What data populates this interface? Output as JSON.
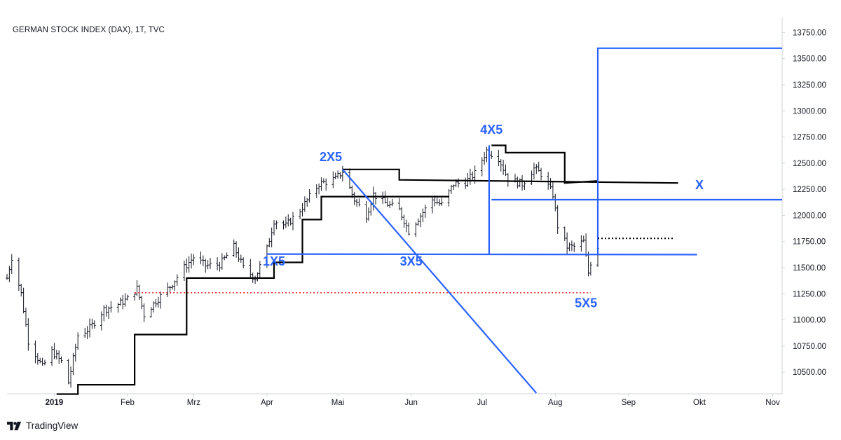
{
  "title": "GERMAN STOCK INDEX (DAX), 1T, TVC",
  "brand": "TradingView",
  "colors": {
    "blue": "#2962ff",
    "black": "#000000",
    "red": "#e53935",
    "bars": "#131722",
    "axis_text": "#131722",
    "border": "#cfd3dc"
  },
  "icons": [
    "tradingview-logo-icon"
  ],
  "chart_data": {
    "type": "ohlc",
    "y_ticks": [
      "13750.00",
      "13500.00",
      "13250.00",
      "13000.00",
      "12750.00",
      "12500.00",
      "12250.00",
      "12000.00",
      "11750.00",
      "11500.00",
      "11250.00",
      "11000.00",
      "10750.00",
      "10500.00"
    ],
    "ylim": [
      10300,
      13900
    ],
    "x_ticks": [
      {
        "label": "2019",
        "date": "2019-01-01"
      },
      {
        "label": "Feb",
        "date": "2019-02-01"
      },
      {
        "label": "Mrz",
        "date": "2019-03-01"
      },
      {
        "label": "Apr",
        "date": "2019-04-01"
      },
      {
        "label": "Mai",
        "date": "2019-05-01"
      },
      {
        "label": "Jun",
        "date": "2019-06-01"
      },
      {
        "label": "Jul",
        "date": "2019-07-01"
      },
      {
        "label": "Aug",
        "date": "2019-08-01"
      },
      {
        "label": "Sep",
        "date": "2019-09-01"
      },
      {
        "label": "Okt",
        "date": "2019-10-01"
      },
      {
        "label": "Nov",
        "date": "2019-11-01"
      }
    ],
    "xlim": [
      "2018-12-12",
      "2019-11-05"
    ],
    "price_path": [
      [
        "2018-12-12",
        11400
      ],
      [
        "2018-12-14",
        11600
      ],
      [
        "2018-12-18",
        11250
      ],
      [
        "2018-12-21",
        10800
      ],
      [
        "2018-12-27",
        10550
      ],
      [
        "2018-12-31",
        10700
      ],
      [
        "2019-01-04",
        10600
      ],
      [
        "2019-01-07",
        10400
      ],
      [
        "2019-01-11",
        10850
      ],
      [
        "2019-01-16",
        10920
      ],
      [
        "2019-01-22",
        11100
      ],
      [
        "2019-01-28",
        11150
      ],
      [
        "2019-02-01",
        11200
      ],
      [
        "2019-02-05",
        11300
      ],
      [
        "2019-02-08",
        11050
      ],
      [
        "2019-02-13",
        11180
      ],
      [
        "2019-02-19",
        11320
      ],
      [
        "2019-02-25",
        11500
      ],
      [
        "2019-03-01",
        11600
      ],
      [
        "2019-03-06",
        11520
      ],
      [
        "2019-03-12",
        11530
      ],
      [
        "2019-03-18",
        11700
      ],
      [
        "2019-03-22",
        11500
      ],
      [
        "2019-03-27",
        11400
      ],
      [
        "2019-04-01",
        11680
      ],
      [
        "2019-04-04",
        11950
      ],
      [
        "2019-04-09",
        11900
      ],
      [
        "2019-04-15",
        12050
      ],
      [
        "2019-04-23",
        12300
      ],
      [
        "2019-04-30",
        12350
      ],
      [
        "2019-05-03",
        12420
      ],
      [
        "2019-05-08",
        12150
      ],
      [
        "2019-05-13",
        12000
      ],
      [
        "2019-05-16",
        12200
      ],
      [
        "2019-05-21",
        12120
      ],
      [
        "2019-05-27",
        12050
      ],
      [
        "2019-05-31",
        11850
      ],
      [
        "2019-06-05",
        12000
      ],
      [
        "2019-06-10",
        12150
      ],
      [
        "2019-06-14",
        12100
      ],
      [
        "2019-06-19",
        12300
      ],
      [
        "2019-06-24",
        12320
      ],
      [
        "2019-06-28",
        12400
      ],
      [
        "2019-07-03",
        12620
      ],
      [
        "2019-07-08",
        12550
      ],
      [
        "2019-07-12",
        12350
      ],
      [
        "2019-07-18",
        12300
      ],
      [
        "2019-07-23",
        12450
      ],
      [
        "2019-07-26",
        12400
      ],
      [
        "2019-07-31",
        12200
      ],
      [
        "2019-08-02",
        11900
      ],
      [
        "2019-08-06",
        11700
      ],
      [
        "2019-08-09",
        11700
      ],
      [
        "2019-08-13",
        11750
      ],
      [
        "2019-08-15",
        11450
      ],
      [
        "2019-08-16",
        11550
      ],
      [
        "2019-08-19",
        11700
      ]
    ],
    "annotations": {
      "labels": [
        {
          "text": "1X5",
          "date": "2019-04-04",
          "price": 11520
        },
        {
          "text": "2X5",
          "date": "2019-04-28",
          "price": 12520
        },
        {
          "text": "3X5",
          "date": "2019-06-01",
          "price": 11520
        },
        {
          "text": "4X5",
          "date": "2019-07-05",
          "price": 12780
        },
        {
          "text": "5X5",
          "date": "2019-08-14",
          "price": 11120
        },
        {
          "text": "X",
          "date": "2019-10-01",
          "price": 12250
        }
      ],
      "black_steps": [
        [
          [
            "2019-01-02",
            10290
          ],
          [
            "2019-01-11",
            10290
          ],
          [
            "2019-01-11",
            10380
          ],
          [
            "2019-02-04",
            10380
          ],
          [
            "2019-02-04",
            10860
          ],
          [
            "2019-02-26",
            10860
          ],
          [
            "2019-02-26",
            11400
          ],
          [
            "2019-04-04",
            11400
          ],
          [
            "2019-04-04",
            11550
          ],
          [
            "2019-04-16",
            11550
          ],
          [
            "2019-04-16",
            11960
          ],
          [
            "2019-04-24",
            11960
          ],
          [
            "2019-04-24",
            12180
          ],
          [
            "2019-06-17",
            12180
          ]
        ],
        [
          [
            "2019-05-03",
            12440
          ],
          [
            "2019-05-27",
            12440
          ],
          [
            "2019-05-27",
            12340
          ],
          [
            "2019-09-22",
            12310
          ]
        ],
        [
          [
            "2019-07-05",
            12670
          ],
          [
            "2019-07-11",
            12670
          ],
          [
            "2019-07-11",
            12600
          ],
          [
            "2019-08-05",
            12600
          ],
          [
            "2019-08-05",
            12310
          ],
          [
            "2019-08-19",
            12330
          ]
        ]
      ],
      "blue_lines": [
        [
          [
            "2019-04-01",
            11630
          ],
          [
            "2019-09-30",
            11625
          ]
        ],
        [
          [
            "2019-05-03",
            12440
          ],
          [
            "2019-07-24",
            10300
          ]
        ],
        [
          [
            "2019-07-04",
            11630
          ],
          [
            "2019-07-04",
            12670
          ]
        ],
        [
          [
            "2019-07-05",
            12150
          ],
          [
            "2019-11-05",
            12150
          ]
        ],
        [
          [
            "2019-08-19",
            11620
          ],
          [
            "2019-08-19",
            13600
          ],
          [
            "2019-11-05",
            13600
          ]
        ]
      ],
      "red_dotted": [
        [
          "2019-02-04",
          11260
        ],
        [
          "2019-08-16",
          11260
        ]
      ],
      "black_dotted": [
        [
          "2019-08-19",
          11780
        ],
        [
          "2019-09-20",
          11780
        ]
      ]
    }
  }
}
